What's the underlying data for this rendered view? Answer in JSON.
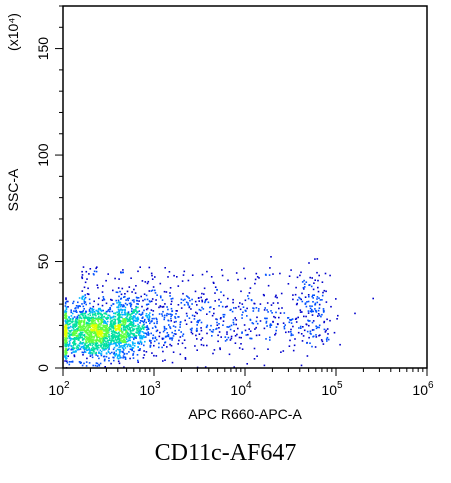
{
  "chart_data": {
    "type": "scatter",
    "subtype": "flow-cytometry density dot plot",
    "xlabel": "APC R660-APC-A",
    "ylabel": "SSC-A",
    "y_scale_note": "(x10⁴)",
    "x_scale": "log",
    "xlim": [
      100,
      1000000
    ],
    "ylim": [
      0,
      170
    ],
    "x_ticks": [
      {
        "value": 100,
        "base": "10",
        "exp": "2"
      },
      {
        "value": 1000,
        "base": "10",
        "exp": "3"
      },
      {
        "value": 10000,
        "base": "10",
        "exp": "4"
      },
      {
        "value": 100000,
        "base": "10",
        "exp": "5"
      },
      {
        "value": 1000000,
        "base": "10",
        "exp": "6"
      }
    ],
    "y_ticks": [
      {
        "value": 0,
        "label": "0"
      },
      {
        "value": 50,
        "label": "50"
      },
      {
        "value": 100,
        "label": "100"
      },
      {
        "value": 150,
        "label": "150"
      }
    ],
    "grid": false,
    "colormap": [
      "#0000cc",
      "#0050ff",
      "#00b4ff",
      "#00e0a0",
      "#60ff40",
      "#e0ff00"
    ],
    "populations": [
      {
        "name": "main",
        "x_log_center": 2.35,
        "x_log_sd": 0.28,
        "y_center": 17,
        "y_sd": 6.5,
        "count": 1700
      },
      {
        "name": "tail",
        "x_log_min": 2.6,
        "x_log_max": 4.9,
        "y_center": 22,
        "y_sd": 8,
        "count": 750
      },
      {
        "name": "upper",
        "x_log_min": 2.2,
        "x_log_max": 4.9,
        "y_min": 30,
        "y_max": 48,
        "count": 130
      },
      {
        "name": "far-cluster",
        "x_log_center": 4.75,
        "x_log_sd": 0.12,
        "y_center": 30,
        "y_sd": 9,
        "count": 90
      },
      {
        "name": "outliers",
        "points": [
          [
            5.4,
            33
          ],
          [
            5.2,
            26
          ],
          [
            4.1,
            40
          ],
          [
            4.3,
            22
          ],
          [
            3.9,
            45
          ]
        ]
      }
    ]
  },
  "caption": "CD11c-AF647"
}
